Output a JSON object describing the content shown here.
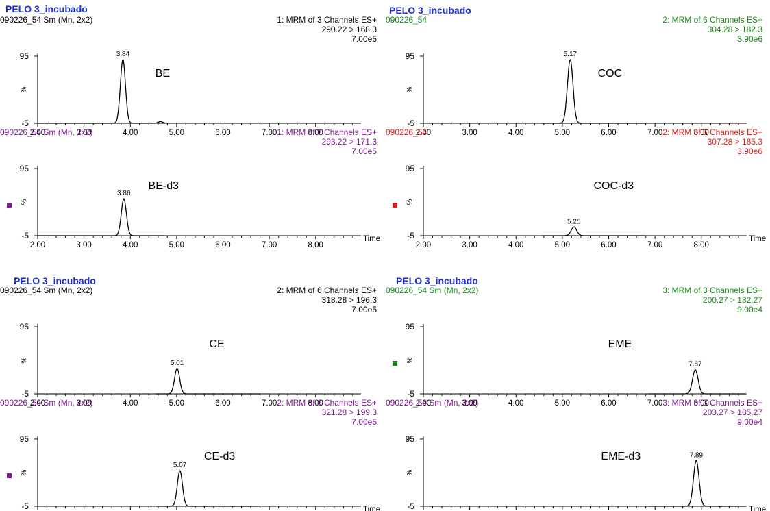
{
  "chart_data": [
    {
      "type": "line",
      "title": "PELO 3_incubado",
      "panels": [
        {
          "sample": "090226_54 Sm",
          "sample_suffix": " (Mn, 2x2)",
          "header_lines": [
            "1: MRM of 3 Channels ES+",
            "290.22 > 168.3",
            "7.00e5"
          ],
          "color": "#000000",
          "label": "BE",
          "peak": {
            "rt": 3.84,
            "height": 95,
            "width": 0.055
          },
          "trace_range": [
            2.0,
            4.75
          ],
          "ytick_labels": [
            "95",
            "%",
            "-5"
          ],
          "show_time": false,
          "marker": false
        },
        {
          "sample": "090226_54 Sm",
          "sample_suffix": " (Mn, 2x2)",
          "header_lines": [
            "1: MRM of 3 Channels ES+",
            "293.22 > 171.3",
            "7.00e5"
          ],
          "color": "#7b1b8c",
          "label": "BE-d3",
          "peak": {
            "rt": 3.86,
            "height": 55,
            "width": 0.055
          },
          "trace_range": [
            2.0,
            4.75
          ],
          "ytick_labels": [
            "95",
            "%",
            "-5"
          ],
          "show_time": true,
          "marker": true
        }
      ],
      "xlim": [
        2.0,
        8.95
      ],
      "xticks": [
        "2.00",
        "3.00",
        "4.00",
        "5.00",
        "6.00",
        "7.00",
        "8.00"
      ],
      "xlabel": "Time",
      "ylim": [
        -5,
        95
      ]
    },
    {
      "type": "line",
      "title": "PELO 3_incubado",
      "panels": [
        {
          "sample": "090226_54",
          "sample_suffix": "",
          "header_lines": [
            "2: MRM of 6 Channels ES+",
            "304.28 > 182.3",
            "3.90e6"
          ],
          "color": "#1a8a1a",
          "label": "COC",
          "peak": {
            "rt": 5.17,
            "height": 95,
            "width": 0.06
          },
          "trace_range": [
            4.55,
            6.8
          ],
          "ytick_labels": [
            "95",
            "%",
            "-5"
          ],
          "show_time": false,
          "marker": false
        },
        {
          "sample": "090226_54",
          "sample_suffix": "",
          "header_lines": [
            "2: MRM of 6 Channels ES+",
            "307.28 > 185.3",
            "3.90e6"
          ],
          "color": "#e31a1a",
          "label": "COC-d3",
          "peak": {
            "rt": 5.25,
            "height": 13,
            "width": 0.06
          },
          "trace_range": [
            4.55,
            6.8
          ],
          "ytick_labels": [
            "95",
            "%",
            "-5"
          ],
          "show_time": true,
          "marker": true
        }
      ],
      "xlim": [
        2.0,
        8.95
      ],
      "xticks": [
        "2.00",
        "3.00",
        "4.00",
        "5.00",
        "6.00",
        "7.00",
        "8.00"
      ],
      "xlabel": "Time",
      "ylim": [
        -5,
        95
      ]
    },
    {
      "type": "line",
      "title": "PELO 3_incubado",
      "panels": [
        {
          "sample": "090226_54 Sm",
          "sample_suffix": " (Mn, 2x2)",
          "header_lines": [
            "2: MRM of 6 Channels ES+",
            "318.28 > 196.3",
            "7.00e5"
          ],
          "color": "#000000",
          "label": "CE",
          "peak": {
            "rt": 5.01,
            "height": 38,
            "width": 0.055
          },
          "trace_range": [
            4.55,
            6.8
          ],
          "ytick_labels": [
            "95",
            "%",
            "-5"
          ],
          "show_time": false,
          "marker": false
        },
        {
          "sample": "090226_54 Sm",
          "sample_suffix": " (Mn, 2x2)",
          "header_lines": [
            "2: MRM of 6 Channels ES+",
            "321.28 > 199.3",
            "7.00e5"
          ],
          "color": "#7b1b8c",
          "label": "CE-d3",
          "peak": {
            "rt": 5.07,
            "height": 53,
            "width": 0.055
          },
          "trace_range": [
            4.55,
            6.8
          ],
          "ytick_labels": [
            "95",
            "%",
            "-5"
          ],
          "show_time": true,
          "marker": true
        }
      ],
      "xlim": [
        2.0,
        8.95
      ],
      "xticks": [
        "2.00",
        "3.00",
        "4.00",
        "5.00",
        "6.00",
        "7.00",
        "8.00"
      ],
      "xlabel": "Time",
      "ylim": [
        -5,
        95
      ]
    },
    {
      "type": "line",
      "title": "PELO 3_incubado",
      "panels": [
        {
          "sample": "090226_54 Sm",
          "sample_suffix": " (Mn, 2x2)",
          "header_lines": [
            "3: MRM of 3 Channels ES+",
            "200.27 > 182.27",
            "9.00e4"
          ],
          "color": "#1a8a1a",
          "label": "EME",
          "peak": {
            "rt": 7.87,
            "height": 36,
            "width": 0.06
          },
          "trace_range": [
            6.85,
            8.95
          ],
          "ytick_labels": [
            "95",
            "%",
            "-5"
          ],
          "show_time": false,
          "marker": true
        },
        {
          "sample": "090226_54 Sm",
          "sample_suffix": " (Mn, 2x2)",
          "header_lines": [
            "3: MRM of 3 Channels ES+",
            "203.27 > 185.27",
            "9.00e4"
          ],
          "color": "#7b1b8c",
          "label": "EME-d3",
          "peak": {
            "rt": 7.89,
            "height": 68,
            "width": 0.06
          },
          "trace_range": [
            6.85,
            8.95
          ],
          "ytick_labels": [
            "95",
            "%",
            "-5"
          ],
          "show_time": true,
          "marker": false
        }
      ],
      "xlim": [
        2.0,
        8.95
      ],
      "xticks": [
        "2.00",
        "3.00",
        "4.00",
        "5.00",
        "6.00",
        "7.00",
        "8.00"
      ],
      "xlabel": "Time",
      "ylim": [
        -5,
        95
      ]
    }
  ]
}
